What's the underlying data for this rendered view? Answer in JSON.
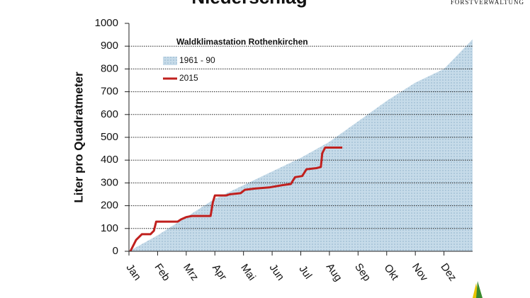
{
  "chart_data": {
    "type": "area_line",
    "title": "Niederschlag",
    "brand": "FORSTVERWALTUNG",
    "y_label": "Liter pro Quadratmeter",
    "legend_title": "Waldklimastation Rothenkirchen",
    "xlim": [
      0,
      12
    ],
    "xticks": [
      {
        "value": 0,
        "label": "Jan"
      },
      {
        "value": 1,
        "label": "Feb"
      },
      {
        "value": 2,
        "label": "Mrz"
      },
      {
        "value": 3,
        "label": "Apr"
      },
      {
        "value": 4,
        "label": "Mai"
      },
      {
        "value": 5,
        "label": "Jun"
      },
      {
        "value": 6,
        "label": "Jul"
      },
      {
        "value": 7,
        "label": "Aug"
      },
      {
        "value": 8,
        "label": "Sep"
      },
      {
        "value": 9,
        "label": "Okt"
      },
      {
        "value": 10,
        "label": "Nov"
      },
      {
        "value": 11,
        "label": "Dez"
      }
    ],
    "ylim": [
      0,
      1000
    ],
    "yticks": [
      0,
      100,
      200,
      300,
      400,
      500,
      600,
      700,
      800,
      900,
      1000
    ],
    "grid": true,
    "series": [
      {
        "name": "1961 - 90",
        "kind": "area",
        "color": "#b9d2e3",
        "x": [
          0,
          1,
          2,
          3,
          4,
          5,
          6,
          7,
          8,
          9,
          10,
          11,
          12
        ],
        "values": [
          0,
          70,
          150,
          230,
          290,
          350,
          410,
          480,
          570,
          660,
          740,
          800,
          930
        ]
      },
      {
        "name": "2015",
        "kind": "line",
        "color": "#c0201e",
        "x": [
          0.05,
          0.25,
          0.45,
          0.75,
          0.87,
          0.95,
          1.7,
          1.82,
          2.0,
          2.2,
          2.85,
          2.93,
          3.0,
          3.4,
          3.52,
          3.9,
          4.05,
          4.4,
          4.9,
          5.35,
          5.65,
          5.8,
          6.05,
          6.2,
          6.55,
          6.7,
          6.75,
          6.85,
          7.45
        ],
        "values": [
          0,
          50,
          75,
          75,
          90,
          130,
          130,
          140,
          150,
          155,
          155,
          215,
          245,
          245,
          250,
          255,
          270,
          275,
          280,
          290,
          295,
          325,
          330,
          360,
          365,
          370,
          430,
          455,
          455
        ]
      }
    ]
  }
}
